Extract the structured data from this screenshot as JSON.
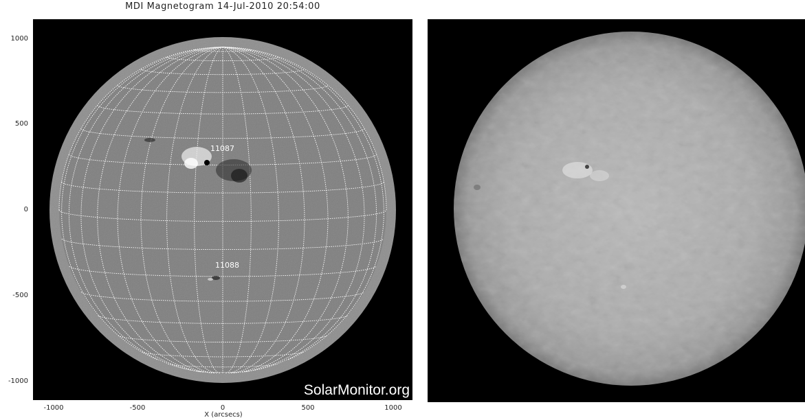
{
  "magnetogram": {
    "title": "MDI Magnetogram 14-Jul-2010 20:54:00",
    "x_axis_label": "X (arcsecs)",
    "x_ticks": [
      "-1000",
      "-500",
      "0",
      "500",
      "1000"
    ],
    "y_ticks": [
      "1000",
      "500",
      "0",
      "-500",
      "-1000"
    ],
    "regions": [
      {
        "label": "11087"
      },
      {
        "label": "11088"
      }
    ],
    "watermark": "SolarMonitor.org"
  },
  "h_alpha": {
    "description_visible": ""
  }
}
